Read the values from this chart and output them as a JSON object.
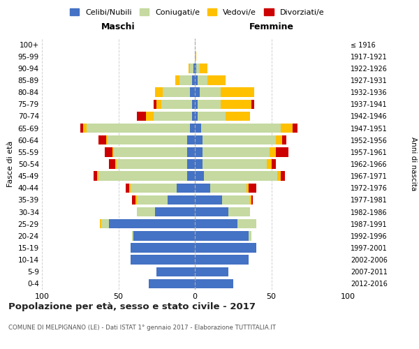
{
  "age_groups": [
    "0-4",
    "5-9",
    "10-14",
    "15-19",
    "20-24",
    "25-29",
    "30-34",
    "35-39",
    "40-44",
    "45-49",
    "50-54",
    "55-59",
    "60-64",
    "65-69",
    "70-74",
    "75-79",
    "80-84",
    "85-89",
    "90-94",
    "95-99",
    "100+"
  ],
  "birth_years": [
    "2012-2016",
    "2007-2011",
    "2002-2006",
    "1997-2001",
    "1992-1996",
    "1987-1991",
    "1982-1986",
    "1977-1981",
    "1972-1976",
    "1967-1971",
    "1962-1966",
    "1957-1961",
    "1952-1956",
    "1947-1951",
    "1942-1946",
    "1937-1941",
    "1932-1936",
    "1927-1931",
    "1922-1926",
    "1917-1921",
    "≤ 1916"
  ],
  "maschi_celibi": [
    30,
    25,
    42,
    42,
    40,
    56,
    26,
    18,
    12,
    5,
    5,
    5,
    5,
    3,
    2,
    2,
    3,
    2,
    1,
    0,
    0
  ],
  "maschi_coniugati": [
    0,
    0,
    0,
    0,
    1,
    5,
    12,
    20,
    30,
    58,
    46,
    48,
    52,
    68,
    25,
    20,
    18,
    8,
    2,
    0,
    0
  ],
  "maschi_vedovi": [
    0,
    0,
    0,
    0,
    0,
    1,
    0,
    1,
    1,
    1,
    1,
    1,
    1,
    2,
    5,
    3,
    5,
    3,
    1,
    0,
    0
  ],
  "maschi_divorziati": [
    0,
    0,
    0,
    0,
    0,
    0,
    0,
    2,
    2,
    2,
    4,
    5,
    5,
    2,
    6,
    2,
    0,
    0,
    0,
    0,
    0
  ],
  "femmine_nubili": [
    25,
    22,
    35,
    40,
    35,
    28,
    22,
    18,
    10,
    6,
    5,
    5,
    5,
    4,
    2,
    2,
    3,
    2,
    1,
    0,
    0
  ],
  "femmine_coniugate": [
    0,
    0,
    0,
    0,
    2,
    12,
    14,
    18,
    24,
    48,
    42,
    44,
    48,
    52,
    18,
    15,
    14,
    6,
    2,
    0,
    0
  ],
  "femmine_vedove": [
    0,
    0,
    0,
    0,
    0,
    0,
    0,
    1,
    1,
    2,
    3,
    4,
    4,
    8,
    16,
    20,
    22,
    12,
    5,
    1,
    0
  ],
  "femmine_divorziate": [
    0,
    0,
    0,
    0,
    0,
    0,
    0,
    1,
    5,
    3,
    3,
    8,
    3,
    3,
    0,
    2,
    0,
    0,
    0,
    0,
    0
  ],
  "colors": {
    "celibi_nubili": "#4472c4",
    "coniugati": "#c5d9a0",
    "vedovi": "#ffc000",
    "divorziati": "#cc0000"
  },
  "xlim": 100,
  "title": "Popolazione per età, sesso e stato civile - 2017",
  "subtitle": "COMUNE DI MELPIGNANO (LE) - Dati ISTAT 1° gennaio 2017 - Elaborazione TUTTITALIA.IT",
  "ylabel_left": "Fasce di età",
  "ylabel_right": "Anni di nascita",
  "xlabel_left": "Maschi",
  "xlabel_right": "Femmine",
  "legend_labels": [
    "Celibi/Nubili",
    "Coniugati/e",
    "Vedovi/e",
    "Divorziati/e"
  ],
  "background_color": "#ffffff",
  "grid_color": "#cccccc"
}
